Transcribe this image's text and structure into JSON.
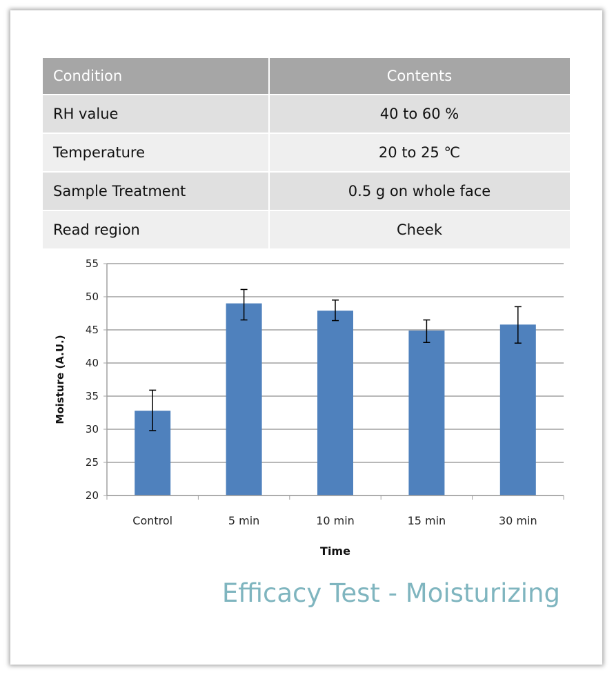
{
  "table": {
    "headers": [
      "Condition",
      "Contents"
    ],
    "rows": [
      [
        "RH value",
        "40 to 60 %"
      ],
      [
        "Temperature",
        "20 to 25 ℃"
      ],
      [
        "Sample Treatment",
        "0.5 g on whole face"
      ],
      [
        "Read region",
        "Cheek"
      ]
    ]
  },
  "chart_data": {
    "type": "bar",
    "categories": [
      "Control",
      "5 min",
      "10 min",
      "15 min",
      "30 min"
    ],
    "values": [
      32.8,
      49,
      47.9,
      44.9,
      45.8
    ],
    "error_low": [
      29.8,
      46.5,
      46.4,
      43.1,
      43.0
    ],
    "error_high": [
      35.9,
      51.1,
      49.5,
      46.5,
      48.5
    ],
    "xlabel": "Time",
    "ylabel": "Moisture (A.U.)",
    "ylim": [
      20,
      55
    ],
    "yticks": [
      20,
      25,
      30,
      35,
      40,
      45,
      50,
      55
    ],
    "grid": true,
    "bar_color": "#4f81bd"
  },
  "caption": "Efficacy Test - Moisturizing"
}
